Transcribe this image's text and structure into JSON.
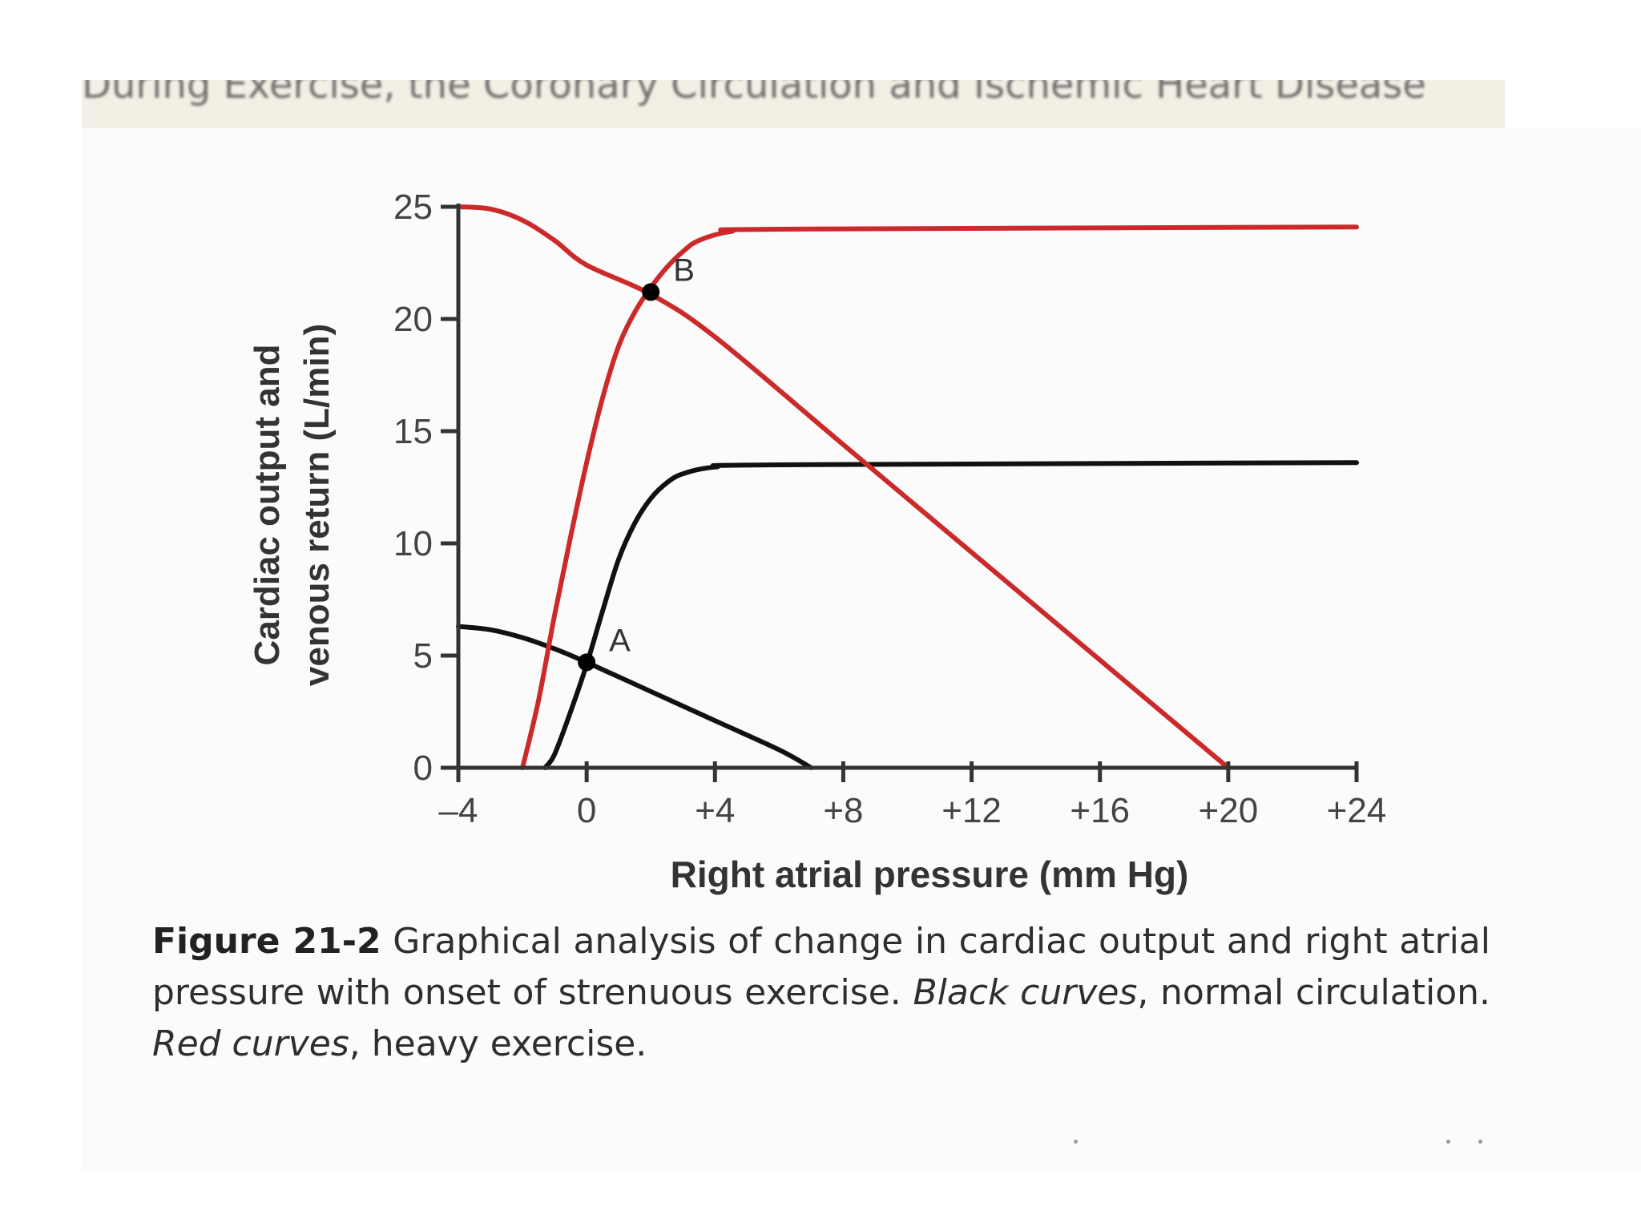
{
  "banner": {
    "text": "During Exercise, the Coronary Circulation and Ischemic Heart Disease"
  },
  "caption": {
    "figure_label": "Figure 21-2",
    "text_part1": " Graphical analysis of change in cardiac output and right atrial pressure with onset of strenuous exercise. ",
    "italic_part1": "Black curves",
    "text_part2": ", normal circulation. ",
    "italic_part2": "Red curves",
    "text_part3": ", heavy exercise."
  },
  "colors": {
    "normal": "#111111",
    "exercise": "#cc2a2a",
    "axis": "#333333"
  },
  "chart_data": {
    "type": "line",
    "xlabel": "Right atrial pressure (mm Hg)",
    "ylabel_line1": "Cardiac output and",
    "ylabel_line2": "venous return (L/min)",
    "xlim": [
      -4,
      24
    ],
    "ylim": [
      0,
      25
    ],
    "x_ticks": [
      -4,
      0,
      4,
      8,
      12,
      16,
      20,
      24
    ],
    "x_tick_labels": [
      "–4",
      "0",
      "+4",
      "+8",
      "+12",
      "+16",
      "+20",
      "+24"
    ],
    "y_ticks": [
      0,
      5,
      10,
      15,
      20,
      25
    ],
    "y_tick_labels": [
      "0",
      "5",
      "10",
      "15",
      "20",
      "25"
    ],
    "grid": false,
    "legend": "none",
    "series": [
      {
        "group": "normal",
        "points": [
          [
            -1.3,
            0
          ],
          [
            -1,
            0.6
          ],
          [
            -0.5,
            2.5
          ],
          [
            0,
            4.6
          ],
          [
            0.5,
            7
          ],
          [
            1,
            9.3
          ],
          [
            1.5,
            10.9
          ],
          [
            2,
            12
          ],
          [
            2.5,
            12.7
          ],
          [
            3,
            13.1
          ],
          [
            4,
            13.4
          ],
          [
            6,
            13.5
          ],
          [
            24,
            13.6
          ]
        ]
      },
      {
        "group": "normal",
        "points": [
          [
            -4,
            6.3
          ],
          [
            -3,
            6.15
          ],
          [
            -2,
            5.8
          ],
          [
            -1,
            5.3
          ],
          [
            0,
            4.7
          ],
          [
            2,
            3.4
          ],
          [
            4,
            2.1
          ],
          [
            6,
            0.8
          ],
          [
            7,
            0
          ]
        ]
      },
      {
        "group": "exercise",
        "points": [
          [
            -2,
            0
          ],
          [
            -1.5,
            3
          ],
          [
            -1,
            6.8
          ],
          [
            -0.5,
            10.3
          ],
          [
            0,
            13.6
          ],
          [
            0.5,
            16.5
          ],
          [
            1,
            18.8
          ],
          [
            1.5,
            20.3
          ],
          [
            2,
            21.4
          ],
          [
            2.5,
            22.3
          ],
          [
            3,
            23
          ],
          [
            3.5,
            23.5
          ],
          [
            4.5,
            23.9
          ],
          [
            6,
            24
          ],
          [
            24,
            24.1
          ]
        ]
      },
      {
        "group": "exercise",
        "points": [
          [
            -4,
            25
          ],
          [
            -3,
            24.9
          ],
          [
            -2,
            24.4
          ],
          [
            -1,
            23.5
          ],
          [
            0,
            22.4
          ],
          [
            2,
            21.1
          ],
          [
            4,
            19.2
          ],
          [
            8,
            14.4
          ],
          [
            12,
            9.6
          ],
          [
            16,
            4.8
          ],
          [
            20,
            0
          ]
        ]
      }
    ],
    "annotations": [
      {
        "label": "A",
        "x": 0,
        "y": 4.7
      },
      {
        "label": "B",
        "x": 2,
        "y": 21.2
      }
    ]
  }
}
